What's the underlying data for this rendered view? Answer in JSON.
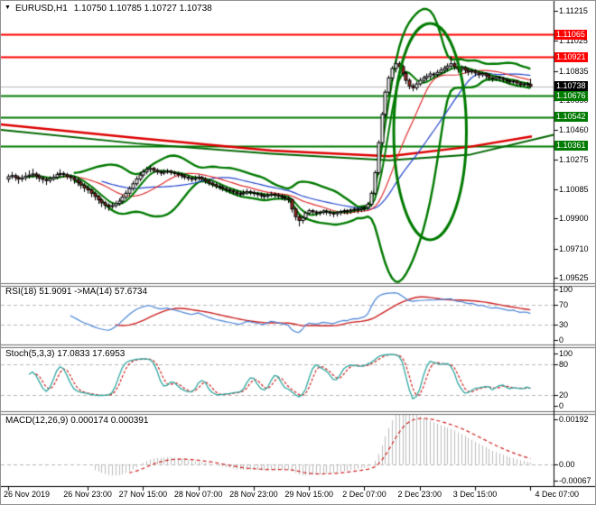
{
  "window": {
    "title_symbol": "EURUSD,H1",
    "title_ohlc": "1.10750 1.10785 1.10727 1.10738",
    "dropdown_glyph": "▼"
  },
  "colors": {
    "resistance_red": "#ff0000",
    "support_green": "#007a00",
    "current_price_line": "#b8b8b8",
    "badge_black": "#000000",
    "bull_candle": "#ffffff",
    "bear_candle": "#9e2b25",
    "candle_outline": "#000000",
    "ma_blue": "#2244cc",
    "ma_red": "#e03030",
    "trend_red": "#dd0000",
    "trend_green": "#006600",
    "rsi_blue": "#4a86d8",
    "rsi_ma_red": "#cc2222",
    "stoch_teal": "#2fa8a0",
    "stoch_signal_red": "#d02020",
    "macd_bar_silver": "#bdbdbd",
    "macd_signal_red": "#cc2020",
    "level_dash_silver": "#b8b8b8"
  },
  "price_axis": {
    "tick_labels": [
      "1.11215",
      "1.11025",
      "1.10835",
      "1.10650",
      "1.10460",
      "1.10275",
      "1.10085",
      "1.09900",
      "1.09710",
      "1.09525"
    ],
    "badges": [
      {
        "label": "1.11065",
        "price": 1.11065,
        "bg": "#ff0000"
      },
      {
        "label": "1.10921",
        "price": 1.10921,
        "bg": "#ff0000"
      },
      {
        "label": "1.10738",
        "price": 1.10738,
        "bg": "#000000"
      },
      {
        "label": "1.10676",
        "price": 1.10676,
        "bg": "#007a00"
      },
      {
        "label": "1.10542",
        "price": 1.10542,
        "bg": "#007a00"
      },
      {
        "label": "1.10361",
        "price": 1.10361,
        "bg": "#007a00"
      }
    ]
  },
  "time_axis": {
    "labels": [
      {
        "label": "26 Nov 2019",
        "index": 0
      },
      {
        "label": "26 Nov 23:00",
        "index": 23
      },
      {
        "label": "27 Nov 15:00",
        "index": 39
      },
      {
        "label": "28 Nov 07:00",
        "index": 55
      },
      {
        "label": "28 Nov 23:00",
        "index": 71
      },
      {
        "label": "29 Nov 15:00",
        "index": 87
      },
      {
        "label": "2 Dec 07:00",
        "index": 103
      },
      {
        "label": "2 Dec 23:00",
        "index": 119
      },
      {
        "label": "3 Dec 15:00",
        "index": 135
      },
      {
        "label": "4 Dec 07:00",
        "index": 151
      }
    ]
  },
  "panels": {
    "rsi": {
      "title": "RSI(18) 51.9091 ->MA(14) 57.6734",
      "scale_labels": [
        {
          "label": "100",
          "value": 100
        },
        {
          "label": "70",
          "value": 70
        },
        {
          "label": "30",
          "value": 30
        },
        {
          "label": "0",
          "value": 0
        }
      ],
      "dashed_levels": [
        70,
        30
      ]
    },
    "stoch": {
      "title": "Stoch(5,3,3) 17.0833 17.6953",
      "scale_labels": [
        {
          "label": "100",
          "value": 100
        },
        {
          "label": "80",
          "value": 80
        },
        {
          "label": "20",
          "value": 20
        },
        {
          "label": "0",
          "value": 0
        }
      ],
      "dashed_levels": [
        80,
        20
      ]
    },
    "macd": {
      "title": "MACD(12,26,9) 0.000174 0.000391",
      "scale_labels": [
        {
          "label": "0.00192",
          "value": 0.00192
        },
        {
          "label": "0.00",
          "value": 0
        },
        {
          "label": "-0.00067",
          "value": -0.00067
        }
      ],
      "dashed_levels": [
        0
      ]
    }
  },
  "chart_data": {
    "type": "candlestick",
    "symbol": "EURUSD",
    "timeframe": "H1",
    "last_ohlc": {
      "open": "1.10750",
      "high": "1.10785",
      "low": "1.10727",
      "close": "1.10738"
    },
    "price_scale": 1e-05,
    "y_axis": {
      "top_price": 1.11215,
      "bottom_price": 1.09525,
      "grid": false
    },
    "horizontal_lines": [
      {
        "price": 1.11065,
        "color": "#ff0000",
        "width": 2,
        "role": "resistance"
      },
      {
        "price": 1.10921,
        "color": "#ff0000",
        "width": 2,
        "role": "resistance"
      },
      {
        "price": 1.10738,
        "color": "#b8b8b8",
        "width": 1,
        "role": "current-price"
      },
      {
        "price": 1.10676,
        "color": "#007a00",
        "width": 2,
        "role": "support"
      },
      {
        "price": 1.10542,
        "color": "#007a00",
        "width": 2,
        "role": "support"
      },
      {
        "price": 1.10361,
        "color": "#007a00",
        "width": 2,
        "role": "support"
      }
    ],
    "trend_ma_red_anchors": [
      [
        0,
        1.10496
      ],
      [
        150,
        1.1041
      ],
      [
        300,
        1.1033
      ],
      [
        430,
        1.10295
      ],
      [
        520,
        1.10355
      ],
      [
        588,
        1.1042
      ]
    ],
    "trend_ma_green_anchors": [
      [
        0,
        1.10462
      ],
      [
        150,
        1.10375
      ],
      [
        300,
        1.1031
      ],
      [
        430,
        1.10268
      ],
      [
        520,
        1.10305
      ],
      [
        612,
        1.1043
      ]
    ],
    "ellipse": {
      "center_index": 122,
      "center_price": 1.1045,
      "rx_candles": 10.5,
      "ry_price": 0.00685
    },
    "indicator_params": {
      "bollinger_period": 20,
      "bollinger_dev": 2,
      "ma_fast_green": 6,
      "ma_mid_red": 16,
      "ma_slow_blue": 28,
      "rsi_period": 18,
      "rsi_ma_period": 14,
      "stoch": [
        5,
        3,
        3
      ],
      "macd": [
        12,
        26,
        9
      ]
    },
    "candles_ohlc": [
      [
        110150,
        110180,
        110128,
        110165
      ],
      [
        110165,
        110195,
        110150,
        110172
      ],
      [
        110172,
        110185,
        110138,
        110160
      ],
      [
        110160,
        110172,
        110120,
        110150
      ],
      [
        110150,
        110178,
        110132,
        110158
      ],
      [
        110158,
        110192,
        110140,
        110168
      ],
      [
        110168,
        110205,
        110152,
        110175
      ],
      [
        110175,
        110215,
        110158,
        110182
      ],
      [
        110182,
        110195,
        110148,
        110170
      ],
      [
        110170,
        110182,
        110132,
        110155
      ],
      [
        110155,
        110170,
        110122,
        110148
      ],
      [
        110148,
        110162,
        110112,
        110140
      ],
      [
        110140,
        110168,
        110125,
        110152
      ],
      [
        110152,
        110180,
        110138,
        110162
      ],
      [
        110162,
        110195,
        110148,
        110178
      ],
      [
        110178,
        110212,
        110162,
        110185
      ],
      [
        110185,
        110198,
        110160,
        110178
      ],
      [
        110178,
        110190,
        110148,
        110168
      ],
      [
        110168,
        110180,
        110135,
        110158
      ],
      [
        110158,
        110170,
        110120,
        110145
      ],
      [
        110145,
        110158,
        110105,
        110130
      ],
      [
        110130,
        110142,
        110088,
        110112
      ],
      [
        110112,
        110125,
        110068,
        110095
      ],
      [
        110095,
        110110,
        110058,
        110082
      ],
      [
        110082,
        110092,
        110035,
        110060
      ],
      [
        110060,
        110072,
        110015,
        110040
      ],
      [
        110040,
        110052,
        109992,
        110018
      ],
      [
        110018,
        110030,
        109972,
        110000
      ],
      [
        110000,
        110012,
        109958,
        109985
      ],
      [
        109985,
        109998,
        109948,
        109975
      ],
      [
        109975,
        110000,
        109960,
        109982
      ],
      [
        109982,
        110012,
        109968,
        109995
      ],
      [
        109995,
        110028,
        109980,
        110010
      ],
      [
        110010,
        110052,
        109995,
        110035
      ],
      [
        110035,
        110078,
        110020,
        110060
      ],
      [
        110060,
        110105,
        110045,
        110090
      ],
      [
        110090,
        110138,
        110075,
        110120
      ],
      [
        110120,
        110168,
        110105,
        110150
      ],
      [
        110150,
        110192,
        110135,
        110175
      ],
      [
        110175,
        110212,
        110160,
        110195
      ],
      [
        110195,
        110228,
        110180,
        110210
      ],
      [
        110210,
        110235,
        110192,
        110218
      ],
      [
        110218,
        110228,
        110188,
        110205
      ],
      [
        110205,
        110218,
        110178,
        110195
      ],
      [
        110195,
        110208,
        110170,
        110188
      ],
      [
        110188,
        110212,
        110175,
        110195
      ],
      [
        110195,
        110215,
        110182,
        110200
      ],
      [
        110200,
        110210,
        110175,
        110192
      ],
      [
        110192,
        110202,
        110168,
        110185
      ],
      [
        110185,
        110196,
        110160,
        110178
      ],
      [
        110178,
        110190,
        110152,
        110170
      ],
      [
        110170,
        110182,
        110145,
        110162
      ],
      [
        110162,
        110175,
        110138,
        110155
      ],
      [
        110155,
        110168,
        110130,
        110148
      ],
      [
        110148,
        110172,
        110135,
        110155
      ],
      [
        110155,
        110178,
        110142,
        110162
      ],
      [
        110162,
        110172,
        110132,
        110150
      ],
      [
        110150,
        110162,
        110120,
        110138
      ],
      [
        110138,
        110150,
        110108,
        110125
      ],
      [
        110125,
        110138,
        110098,
        110115
      ],
      [
        110115,
        110128,
        110088,
        110105
      ],
      [
        110105,
        110118,
        110080,
        110098
      ],
      [
        110098,
        110110,
        110072,
        110090
      ],
      [
        110090,
        110102,
        110065,
        110082
      ],
      [
        110082,
        110095,
        110058,
        110075
      ],
      [
        110075,
        110088,
        110050,
        110068
      ],
      [
        110068,
        110080,
        110042,
        110060
      ],
      [
        110060,
        110075,
        110038,
        110055
      ],
      [
        110055,
        110082,
        110045,
        110062
      ],
      [
        110062,
        110088,
        110050,
        110070
      ],
      [
        110070,
        110082,
        110048,
        110065
      ],
      [
        110065,
        110078,
        110040,
        110058
      ],
      [
        110058,
        110070,
        110035,
        110052
      ],
      [
        110052,
        110065,
        110028,
        110045
      ],
      [
        110045,
        110058,
        110022,
        110040
      ],
      [
        110040,
        110062,
        110028,
        110048
      ],
      [
        110048,
        110070,
        110035,
        110055
      ],
      [
        110055,
        110065,
        110030,
        110050
      ],
      [
        110050,
        110062,
        110025,
        110042
      ],
      [
        110042,
        110055,
        110018,
        110035
      ],
      [
        110035,
        110048,
        110010,
        110028
      ],
      [
        110028,
        110040,
        109998,
        110020
      ],
      [
        110020,
        110028,
        109938,
        109960
      ],
      [
        109960,
        109972,
        109888,
        109912
      ],
      [
        109912,
        109925,
        109850,
        109888
      ],
      [
        109888,
        109915,
        109868,
        109905
      ],
      [
        109905,
        109945,
        109890,
        109935
      ],
      [
        109935,
        109962,
        109920,
        109950
      ],
      [
        109950,
        109960,
        109925,
        109942
      ],
      [
        109942,
        109952,
        109915,
        109935
      ],
      [
        109935,
        109950,
        109918,
        109940
      ],
      [
        109940,
        109958,
        109925,
        109948
      ],
      [
        109948,
        109958,
        109922,
        109942
      ],
      [
        109942,
        109952,
        109915,
        109935
      ],
      [
        109935,
        109945,
        109908,
        109930
      ],
      [
        109930,
        109948,
        109912,
        109938
      ],
      [
        109938,
        109955,
        109920,
        109945
      ],
      [
        109945,
        109962,
        109928,
        109950
      ],
      [
        109950,
        109960,
        109925,
        109948
      ],
      [
        109948,
        109965,
        109930,
        109955
      ],
      [
        109955,
        109972,
        109938,
        109960
      ],
      [
        109960,
        109970,
        109932,
        109958
      ],
      [
        109958,
        109975,
        109940,
        109965
      ],
      [
        109965,
        109980,
        109945,
        109970
      ],
      [
        109970,
        110005,
        109955,
        109990
      ],
      [
        109990,
        110075,
        109975,
        110060
      ],
      [
        110060,
        110205,
        110048,
        110190
      ],
      [
        110190,
        110395,
        110175,
        110380
      ],
      [
        110380,
        110575,
        110360,
        110560
      ],
      [
        110560,
        110715,
        110540,
        110700
      ],
      [
        110700,
        110805,
        110680,
        110790
      ],
      [
        110790,
        110865,
        110770,
        110850
      ],
      [
        110850,
        110900,
        110825,
        110880
      ],
      [
        110880,
        110895,
        110838,
        110862
      ],
      [
        110862,
        110875,
        110800,
        110820
      ],
      [
        110820,
        110832,
        110752,
        110775
      ],
      [
        110775,
        110788,
        110718,
        110740
      ],
      [
        110740,
        110755,
        110705,
        110728
      ],
      [
        110728,
        110768,
        110712,
        110752
      ],
      [
        110752,
        110792,
        110738,
        110775
      ],
      [
        110775,
        110805,
        110758,
        110790
      ],
      [
        110790,
        110818,
        110772,
        110800
      ],
      [
        110800,
        110832,
        110782,
        110815
      ],
      [
        110815,
        110828,
        110790,
        110812
      ],
      [
        110812,
        110842,
        110795,
        110825
      ],
      [
        110825,
        110858,
        110808,
        110840
      ],
      [
        110840,
        110868,
        110820,
        110852
      ],
      [
        110852,
        110882,
        110832,
        110865
      ],
      [
        110865,
        110930,
        110848,
        110880
      ],
      [
        110880,
        110895,
        110840,
        110862
      ],
      [
        110862,
        110875,
        110822,
        110845
      ],
      [
        110845,
        110870,
        110828,
        110855
      ],
      [
        110855,
        110865,
        110818,
        110840
      ],
      [
        110840,
        110852,
        110805,
        110828
      ],
      [
        110828,
        110848,
        110812,
        110835
      ],
      [
        110835,
        110845,
        110800,
        110822
      ],
      [
        110822,
        110832,
        110788,
        110810
      ],
      [
        110810,
        110828,
        110795,
        110818
      ],
      [
        110818,
        110825,
        110782,
        110805
      ],
      [
        110805,
        110815,
        110772,
        110792
      ],
      [
        110792,
        110802,
        110765,
        110785
      ],
      [
        110785,
        110805,
        110772,
        110795
      ],
      [
        110795,
        110802,
        110768,
        110788
      ],
      [
        110788,
        110798,
        110762,
        110780
      ],
      [
        110780,
        110790,
        110755,
        110772
      ],
      [
        110772,
        110782,
        110748,
        110765
      ],
      [
        110765,
        110780,
        110752,
        110770
      ],
      [
        110770,
        110778,
        110740,
        110758
      ],
      [
        110758,
        110768,
        110732,
        110748
      ],
      [
        110748,
        110762,
        110735,
        110752
      ],
      [
        110752,
        110765,
        110730,
        110750
      ],
      [
        110750,
        110785,
        110727,
        110738
      ]
    ]
  }
}
